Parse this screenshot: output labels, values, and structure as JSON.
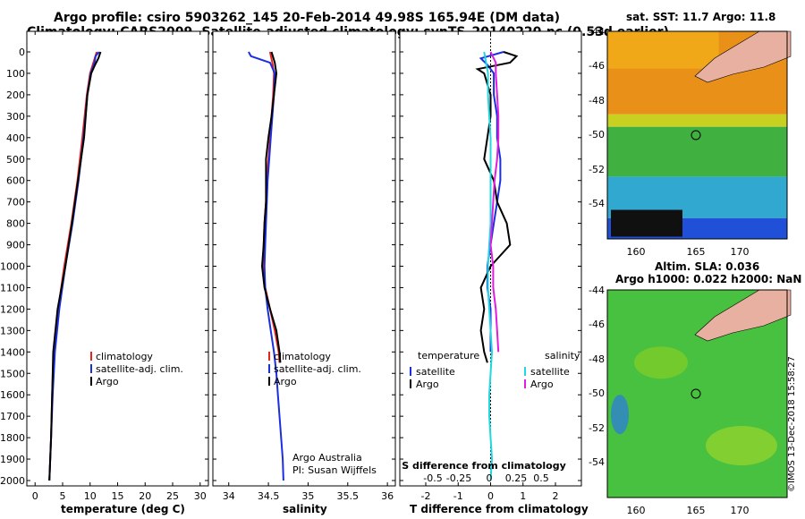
{
  "header": {
    "title_line1": "Argo profile: csiro 5903262_145 20-Feb-2014 49.98S 165.94E (DM data)",
    "title_line2": "Climatology: CARS2009. Satellite-adjusted climatology: synTS_20140220.nc (0.53d earlier)"
  },
  "colors": {
    "climatology": "#e8231e",
    "satellite": "#1a2fe0",
    "argo": "#000000",
    "satellite_salinity": "#22d8e0",
    "argo_salinity": "#e01ee0"
  },
  "chart_data": [
    {
      "type": "line",
      "xlabel": "temperature (deg C)",
      "ylabel": "",
      "xlim": [
        -1.5,
        31.5
      ],
      "ylim": [
        2070,
        0
      ],
      "x_ticks": [
        0,
        5,
        10,
        15,
        20,
        25,
        30
      ],
      "y_ticks": [
        0,
        100,
        200,
        300,
        400,
        500,
        600,
        700,
        800,
        900,
        1000,
        1100,
        1200,
        1300,
        1400,
        1500,
        1600,
        1700,
        1800,
        1900,
        2000
      ],
      "legend": [
        "climatology",
        "satellite-adj. clim.",
        "Argo"
      ],
      "series": [
        {
          "name": "climatology",
          "depth": [
            0,
            50,
            100,
            200,
            400,
            600,
            800,
            1000,
            1200,
            1400,
            1600,
            1800,
            2000
          ],
          "values": [
            11.2,
            10.6,
            10.0,
            9.4,
            8.6,
            7.7,
            6.6,
            5.3,
            4.2,
            3.4,
            3.1,
            2.9,
            2.6
          ]
        },
        {
          "name": "satellite-adj. clim.",
          "depth": [
            0,
            20,
            50,
            100,
            200,
            400,
            600,
            800,
            1000,
            1200,
            1400,
            1600,
            1800,
            2000
          ],
          "values": [
            11.6,
            11.0,
            10.8,
            10.1,
            9.5,
            8.8,
            7.9,
            6.8,
            5.5,
            4.4,
            3.6,
            3.2,
            2.9,
            2.6
          ]
        },
        {
          "name": "Argo",
          "depth": [
            0,
            30,
            60,
            100,
            200,
            400,
            600,
            800,
            1000,
            1200,
            1400,
            1600,
            1800,
            2000
          ],
          "values": [
            11.9,
            11.5,
            10.9,
            10.2,
            9.5,
            8.9,
            7.8,
            6.7,
            5.5,
            4.1,
            3.3,
            3.1,
            2.9,
            2.6
          ]
        }
      ]
    },
    {
      "type": "line",
      "xlabel": "salinity",
      "xlim": [
        33.8,
        36.1
      ],
      "ylim": [
        2070,
        0
      ],
      "x_ticks": [
        34,
        34.5,
        35,
        35.5,
        36
      ],
      "legend": [
        "climatology",
        "satellite-adj. clim.",
        "Argo"
      ],
      "annotation": [
        "Argo Australia",
        "PI: Susan Wijffels"
      ],
      "series": [
        {
          "name": "climatology",
          "depth": [
            0,
            50,
            100,
            200,
            300,
            400,
            500,
            600,
            700,
            800,
            900,
            1000,
            1100,
            1200,
            1300,
            1400,
            1450
          ],
          "values": [
            34.52,
            34.55,
            34.57,
            34.56,
            34.54,
            34.52,
            34.5,
            34.48,
            34.47,
            34.45,
            34.44,
            34.44,
            34.46,
            34.52,
            34.58,
            34.63,
            34.64
          ]
        },
        {
          "name": "satellite-adj. clim.",
          "depth": [
            0,
            20,
            50,
            100,
            200,
            300,
            400,
            500,
            600,
            700,
            800,
            900,
            1000,
            1100,
            1200,
            1300,
            1400,
            1500,
            1600,
            1700,
            1800,
            1900,
            2000
          ],
          "values": [
            34.25,
            34.28,
            34.52,
            34.58,
            34.57,
            34.55,
            34.53,
            34.51,
            34.49,
            34.48,
            34.47,
            34.46,
            34.45,
            34.46,
            34.49,
            34.53,
            34.57,
            34.6,
            34.62,
            34.64,
            34.66,
            34.68,
            34.69
          ]
        },
        {
          "name": "Argo",
          "depth": [
            0,
            50,
            100,
            200,
            300,
            400,
            500,
            600,
            700,
            800,
            900,
            1000,
            1100,
            1200,
            1300,
            1400,
            1450
          ],
          "values": [
            34.54,
            34.58,
            34.6,
            34.57,
            34.54,
            34.5,
            34.47,
            34.47,
            34.47,
            34.45,
            34.44,
            34.42,
            34.45,
            34.52,
            34.6,
            34.64,
            34.65
          ]
        }
      ]
    },
    {
      "type": "line",
      "xlabel": "T difference from climatology",
      "secondary_xlabel": "S difference from climatology",
      "xlim": [
        -2.8,
        2.8
      ],
      "ylim": [
        2070,
        0
      ],
      "x_ticks": [
        -2,
        -1,
        0,
        1,
        2
      ],
      "secondary_x_ticks": [
        "-0.5",
        "-0.25",
        "0",
        "0.25",
        "0.5"
      ],
      "legend_titles": [
        "temperature",
        "salinity"
      ],
      "legend": [
        "satellite",
        "Argo",
        "satellite",
        "Argo"
      ],
      "series": [
        {
          "name": "temperature satellite",
          "depth": [
            0,
            30,
            60,
            100,
            200,
            300,
            400,
            500,
            600,
            700,
            800,
            900,
            1000,
            1100,
            1200,
            1300,
            1400
          ],
          "values": [
            0.4,
            -0.3,
            -0.1,
            0.1,
            0.1,
            0.2,
            0.2,
            0.3,
            0.3,
            0.2,
            0.1,
            0.0,
            -0.1,
            -0.1,
            0.0,
            0.0,
            0.0
          ]
        },
        {
          "name": "temperature Argo",
          "depth": [
            0,
            20,
            50,
            80,
            100,
            150,
            200,
            300,
            400,
            500,
            600,
            700,
            800,
            900,
            1000,
            1100,
            1200,
            1300,
            1400,
            1450
          ],
          "values": [
            0.4,
            0.8,
            0.6,
            -0.4,
            -0.2,
            -0.1,
            0.0,
            0.0,
            -0.1,
            -0.2,
            0.1,
            0.2,
            0.5,
            0.6,
            0.0,
            -0.3,
            -0.2,
            -0.3,
            -0.2,
            -0.1
          ]
        },
        {
          "name": "salinity satellite",
          "depth": [
            0,
            100,
            200,
            300,
            400,
            500,
            600,
            700,
            800,
            900,
            1000,
            1100,
            1200,
            1300,
            1400,
            1500,
            1600,
            1700,
            1800,
            1900,
            2000
          ],
          "values": [
            -0.05,
            -0.02,
            -0.02,
            -0.01,
            0.0,
            0.0,
            0.0,
            0.0,
            0.0,
            -0.01,
            -0.02,
            -0.02,
            -0.01,
            0.0,
            0.01,
            0.0,
            -0.01,
            -0.01,
            0.0,
            0.01,
            0.0
          ]
        },
        {
          "name": "salinity Argo",
          "depth": [
            0,
            50,
            100,
            200,
            300,
            400,
            500,
            600,
            700,
            800,
            900,
            1000,
            1100,
            1200,
            1300,
            1400
          ],
          "values": [
            0.0,
            0.04,
            0.04,
            0.05,
            0.06,
            0.06,
            0.05,
            0.03,
            0.02,
            0.01,
            0.0,
            0.02,
            0.02,
            0.04,
            0.05,
            0.06
          ]
        }
      ]
    }
  ],
  "maps": {
    "sst": {
      "title": "sat. SST: 11.7 Argo: 11.8",
      "lat_ticks": [
        "-44",
        "-46",
        "-48",
        "-50",
        "-52",
        "-54"
      ],
      "lon_ticks": [
        "160",
        "165",
        "170"
      ]
    },
    "sla": {
      "title_line1": "Altim. SLA: 0.036",
      "title_line2": "Argo h1000: 0.022 h2000: NaN",
      "lat_ticks": [
        "-44",
        "-46",
        "-48",
        "-50",
        "-52",
        "-54"
      ],
      "lon_ticks": [
        "160",
        "165",
        "170"
      ]
    },
    "credit": "©IMOS 13-Dec-2018 15:58:27"
  }
}
